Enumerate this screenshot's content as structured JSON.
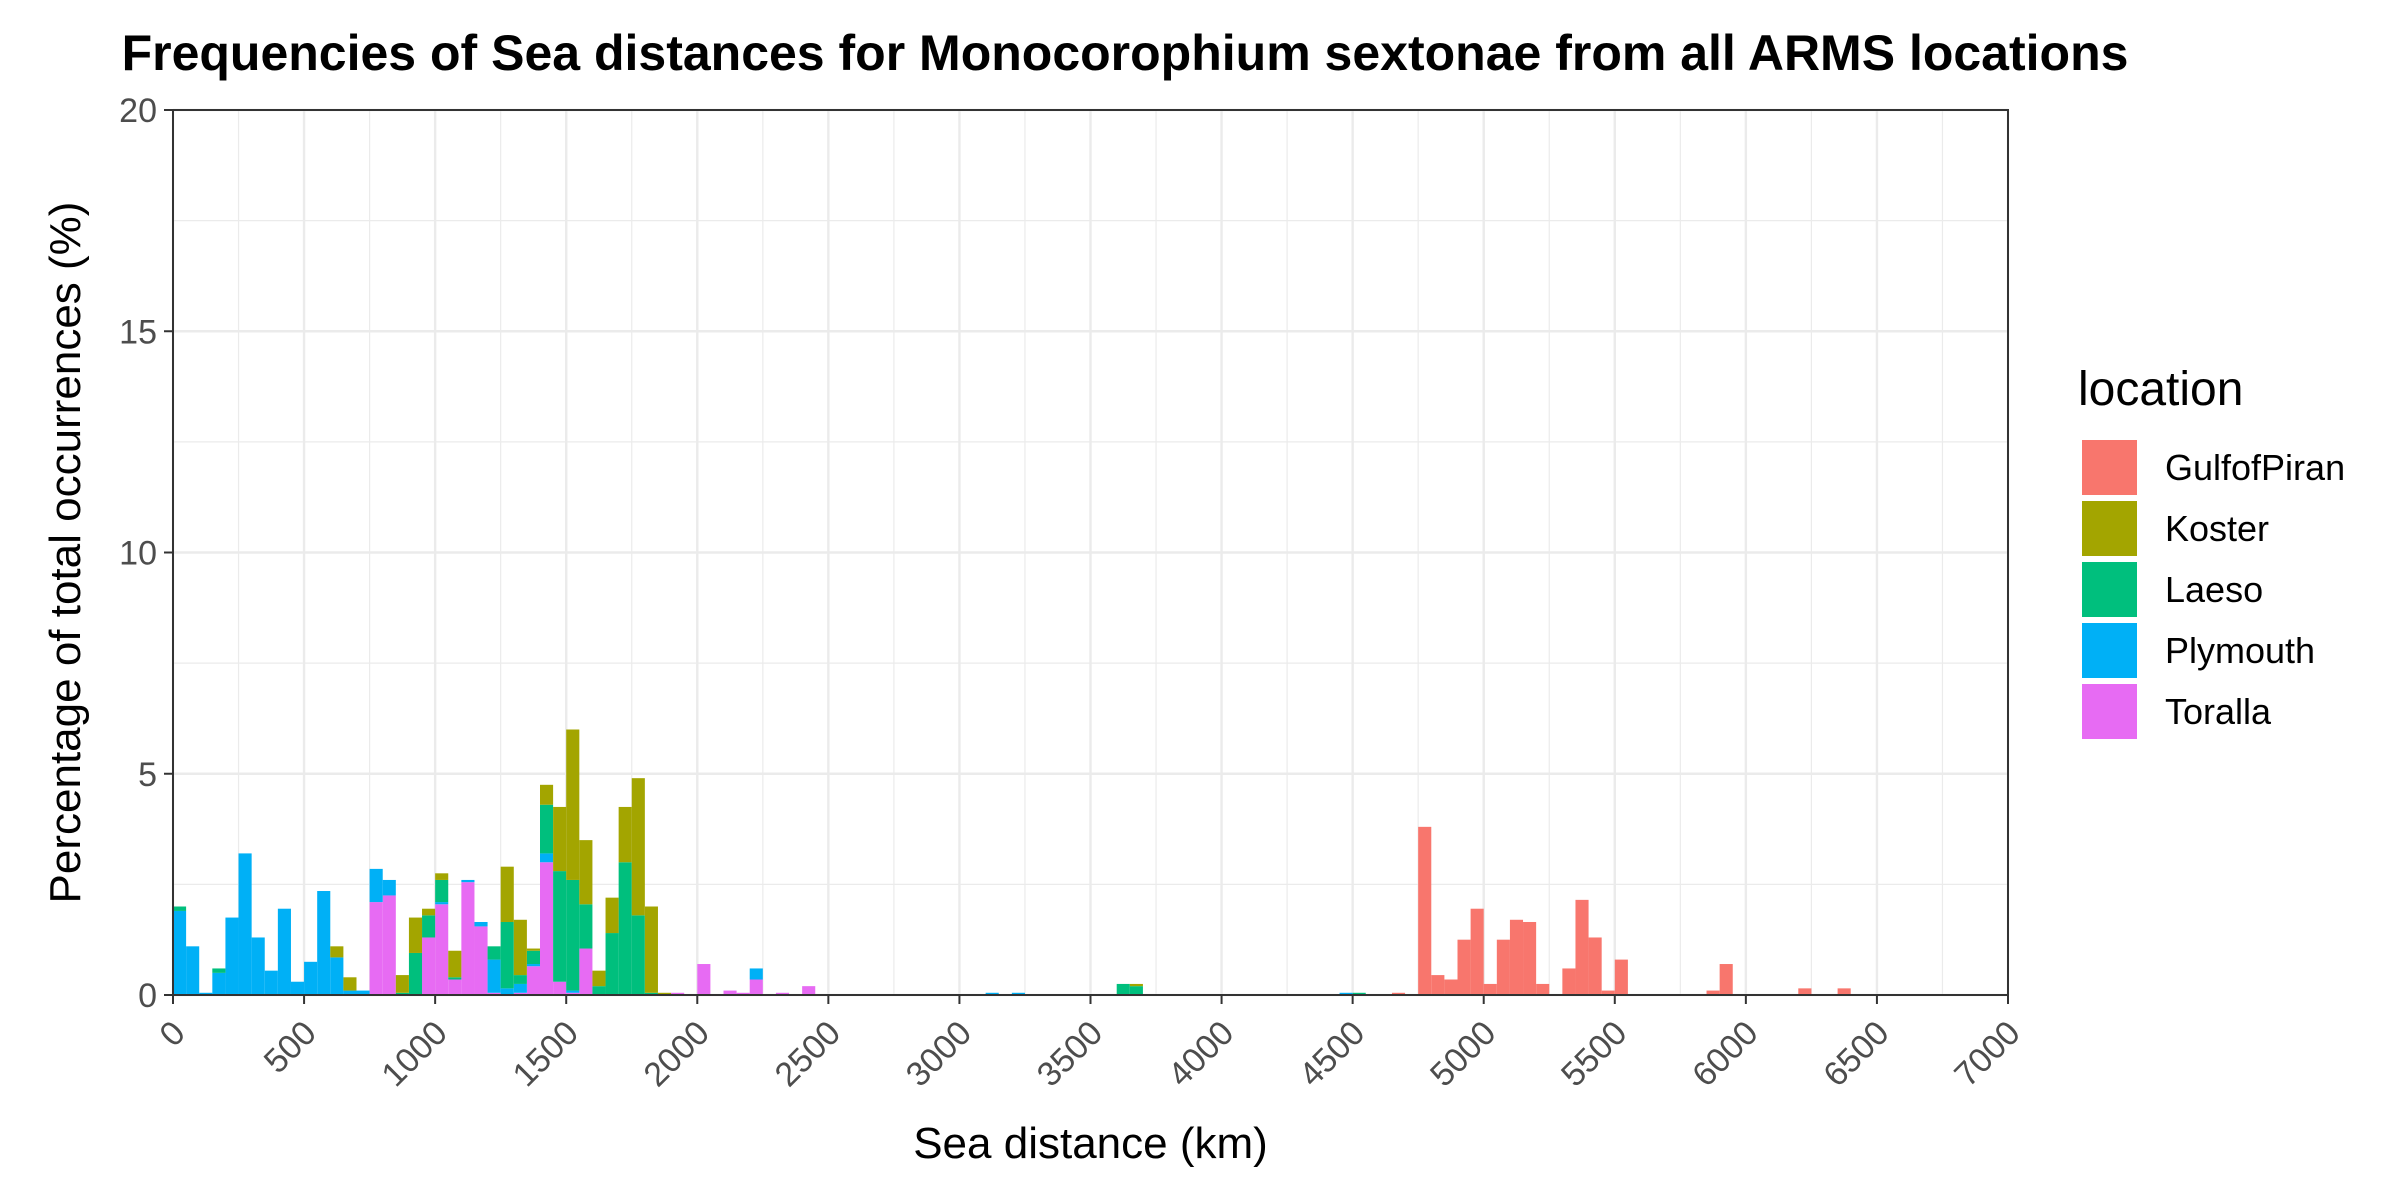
{
  "chart_data": {
    "type": "bar",
    "stacked": true,
    "title": "Frequencies of Sea distances for Monocorophium sextonae from all ARMS locations",
    "xlabel": "Sea distance (km)",
    "ylabel": "Percentage of total occurrences (%)",
    "xlim": [
      0,
      7000
    ],
    "ylim": [
      0,
      20
    ],
    "x_ticks": [
      "0",
      "500",
      "1000",
      "1500",
      "2000",
      "2500",
      "3000",
      "3500",
      "4000",
      "4500",
      "5000",
      "5500",
      "6000",
      "6500",
      "7000"
    ],
    "y_ticks": [
      "0",
      "5",
      "10",
      "15",
      "20"
    ],
    "grid": true,
    "legend_position": "right",
    "legend_title": "location",
    "bin_width_km": 50,
    "series": [
      {
        "name": "GulfofPiran",
        "color": "#F8766D",
        "bins": [
          [
            4650,
            0.05
          ],
          [
            4750,
            3.8
          ],
          [
            4800,
            0.45
          ],
          [
            4850,
            0.35
          ],
          [
            4900,
            1.25
          ],
          [
            4950,
            1.95
          ],
          [
            5000,
            0.25
          ],
          [
            5050,
            1.25
          ],
          [
            5100,
            1.7
          ],
          [
            5150,
            1.65
          ],
          [
            5200,
            0.25
          ],
          [
            5300,
            0.6
          ],
          [
            5350,
            2.15
          ],
          [
            5400,
            1.3
          ],
          [
            5450,
            0.1
          ],
          [
            5500,
            0.8
          ],
          [
            5850,
            0.1
          ],
          [
            5900,
            0.7
          ],
          [
            6200,
            0.15
          ],
          [
            6350,
            0.15
          ]
        ]
      },
      {
        "name": "Koster",
        "color": "#A3A500",
        "bins": [
          [
            600,
            0.25
          ],
          [
            650,
            0.3
          ],
          [
            850,
            0.4
          ],
          [
            900,
            0.8
          ],
          [
            950,
            0.15
          ],
          [
            1000,
            0.15
          ],
          [
            1050,
            0.6
          ],
          [
            1250,
            1.25
          ],
          [
            1300,
            1.25
          ],
          [
            1350,
            0.05
          ],
          [
            1400,
            0.45
          ],
          [
            1450,
            1.45
          ],
          [
            1500,
            3.4
          ],
          [
            1550,
            1.45
          ],
          [
            1600,
            0.35
          ],
          [
            1650,
            0.8
          ],
          [
            1700,
            1.25
          ],
          [
            1750,
            3.1
          ],
          [
            1800,
            1.95
          ],
          [
            1850,
            0.05
          ],
          [
            3650,
            0.05
          ]
        ]
      },
      {
        "name": "Laeso",
        "color": "#00BF7D",
        "bins": [
          [
            0,
            0.1
          ],
          [
            150,
            0.1
          ],
          [
            850,
            0.05
          ],
          [
            900,
            0.95
          ],
          [
            950,
            0.5
          ],
          [
            1000,
            0.5
          ],
          [
            1050,
            0.05
          ],
          [
            1200,
            0.3
          ],
          [
            1250,
            1.5
          ],
          [
            1300,
            0.2
          ],
          [
            1350,
            0.3
          ],
          [
            1400,
            1.1
          ],
          [
            1450,
            2.5
          ],
          [
            1500,
            2.5
          ],
          [
            1550,
            1.0
          ],
          [
            1600,
            0.2
          ],
          [
            1650,
            1.4
          ],
          [
            1700,
            3.0
          ],
          [
            1750,
            1.8
          ],
          [
            1800,
            0.05
          ],
          [
            3600,
            0.25
          ],
          [
            3650,
            0.2
          ],
          [
            4500,
            0.05
          ]
        ]
      },
      {
        "name": "Plymouth",
        "color": "#00B0F6",
        "bins": [
          [
            0,
            1.9
          ],
          [
            50,
            1.1
          ],
          [
            100,
            0.05
          ],
          [
            150,
            0.5
          ],
          [
            200,
            1.75
          ],
          [
            250,
            3.2
          ],
          [
            300,
            1.3
          ],
          [
            350,
            0.55
          ],
          [
            400,
            1.95
          ],
          [
            450,
            0.3
          ],
          [
            500,
            0.75
          ],
          [
            550,
            2.35
          ],
          [
            600,
            0.85
          ],
          [
            650,
            0.1
          ],
          [
            700,
            0.1
          ],
          [
            750,
            0.75
          ],
          [
            800,
            0.35
          ],
          [
            1000,
            0.05
          ],
          [
            1100,
            0.05
          ],
          [
            1150,
            0.1
          ],
          [
            1200,
            0.75
          ],
          [
            1250,
            0.15
          ],
          [
            1300,
            0.2
          ],
          [
            1350,
            0.05
          ],
          [
            1400,
            0.2
          ],
          [
            1500,
            0.05
          ],
          [
            2200,
            0.25
          ],
          [
            3100,
            0.05
          ],
          [
            3200,
            0.05
          ],
          [
            4450,
            0.05
          ]
        ]
      },
      {
        "name": "Toralla",
        "color": "#E76BF3",
        "bins": [
          [
            750,
            2.1
          ],
          [
            800,
            2.25
          ],
          [
            950,
            1.3
          ],
          [
            1000,
            2.05
          ],
          [
            1050,
            0.35
          ],
          [
            1100,
            2.55
          ],
          [
            1150,
            1.55
          ],
          [
            1200,
            0.05
          ],
          [
            1300,
            0.05
          ],
          [
            1350,
            0.65
          ],
          [
            1400,
            3.0
          ],
          [
            1450,
            0.3
          ],
          [
            1500,
            0.05
          ],
          [
            1550,
            1.05
          ],
          [
            1900,
            0.05
          ],
          [
            2000,
            0.7
          ],
          [
            2100,
            0.1
          ],
          [
            2150,
            0.05
          ],
          [
            2200,
            0.35
          ],
          [
            2300,
            0.05
          ],
          [
            2400,
            0.2
          ]
        ]
      }
    ]
  }
}
